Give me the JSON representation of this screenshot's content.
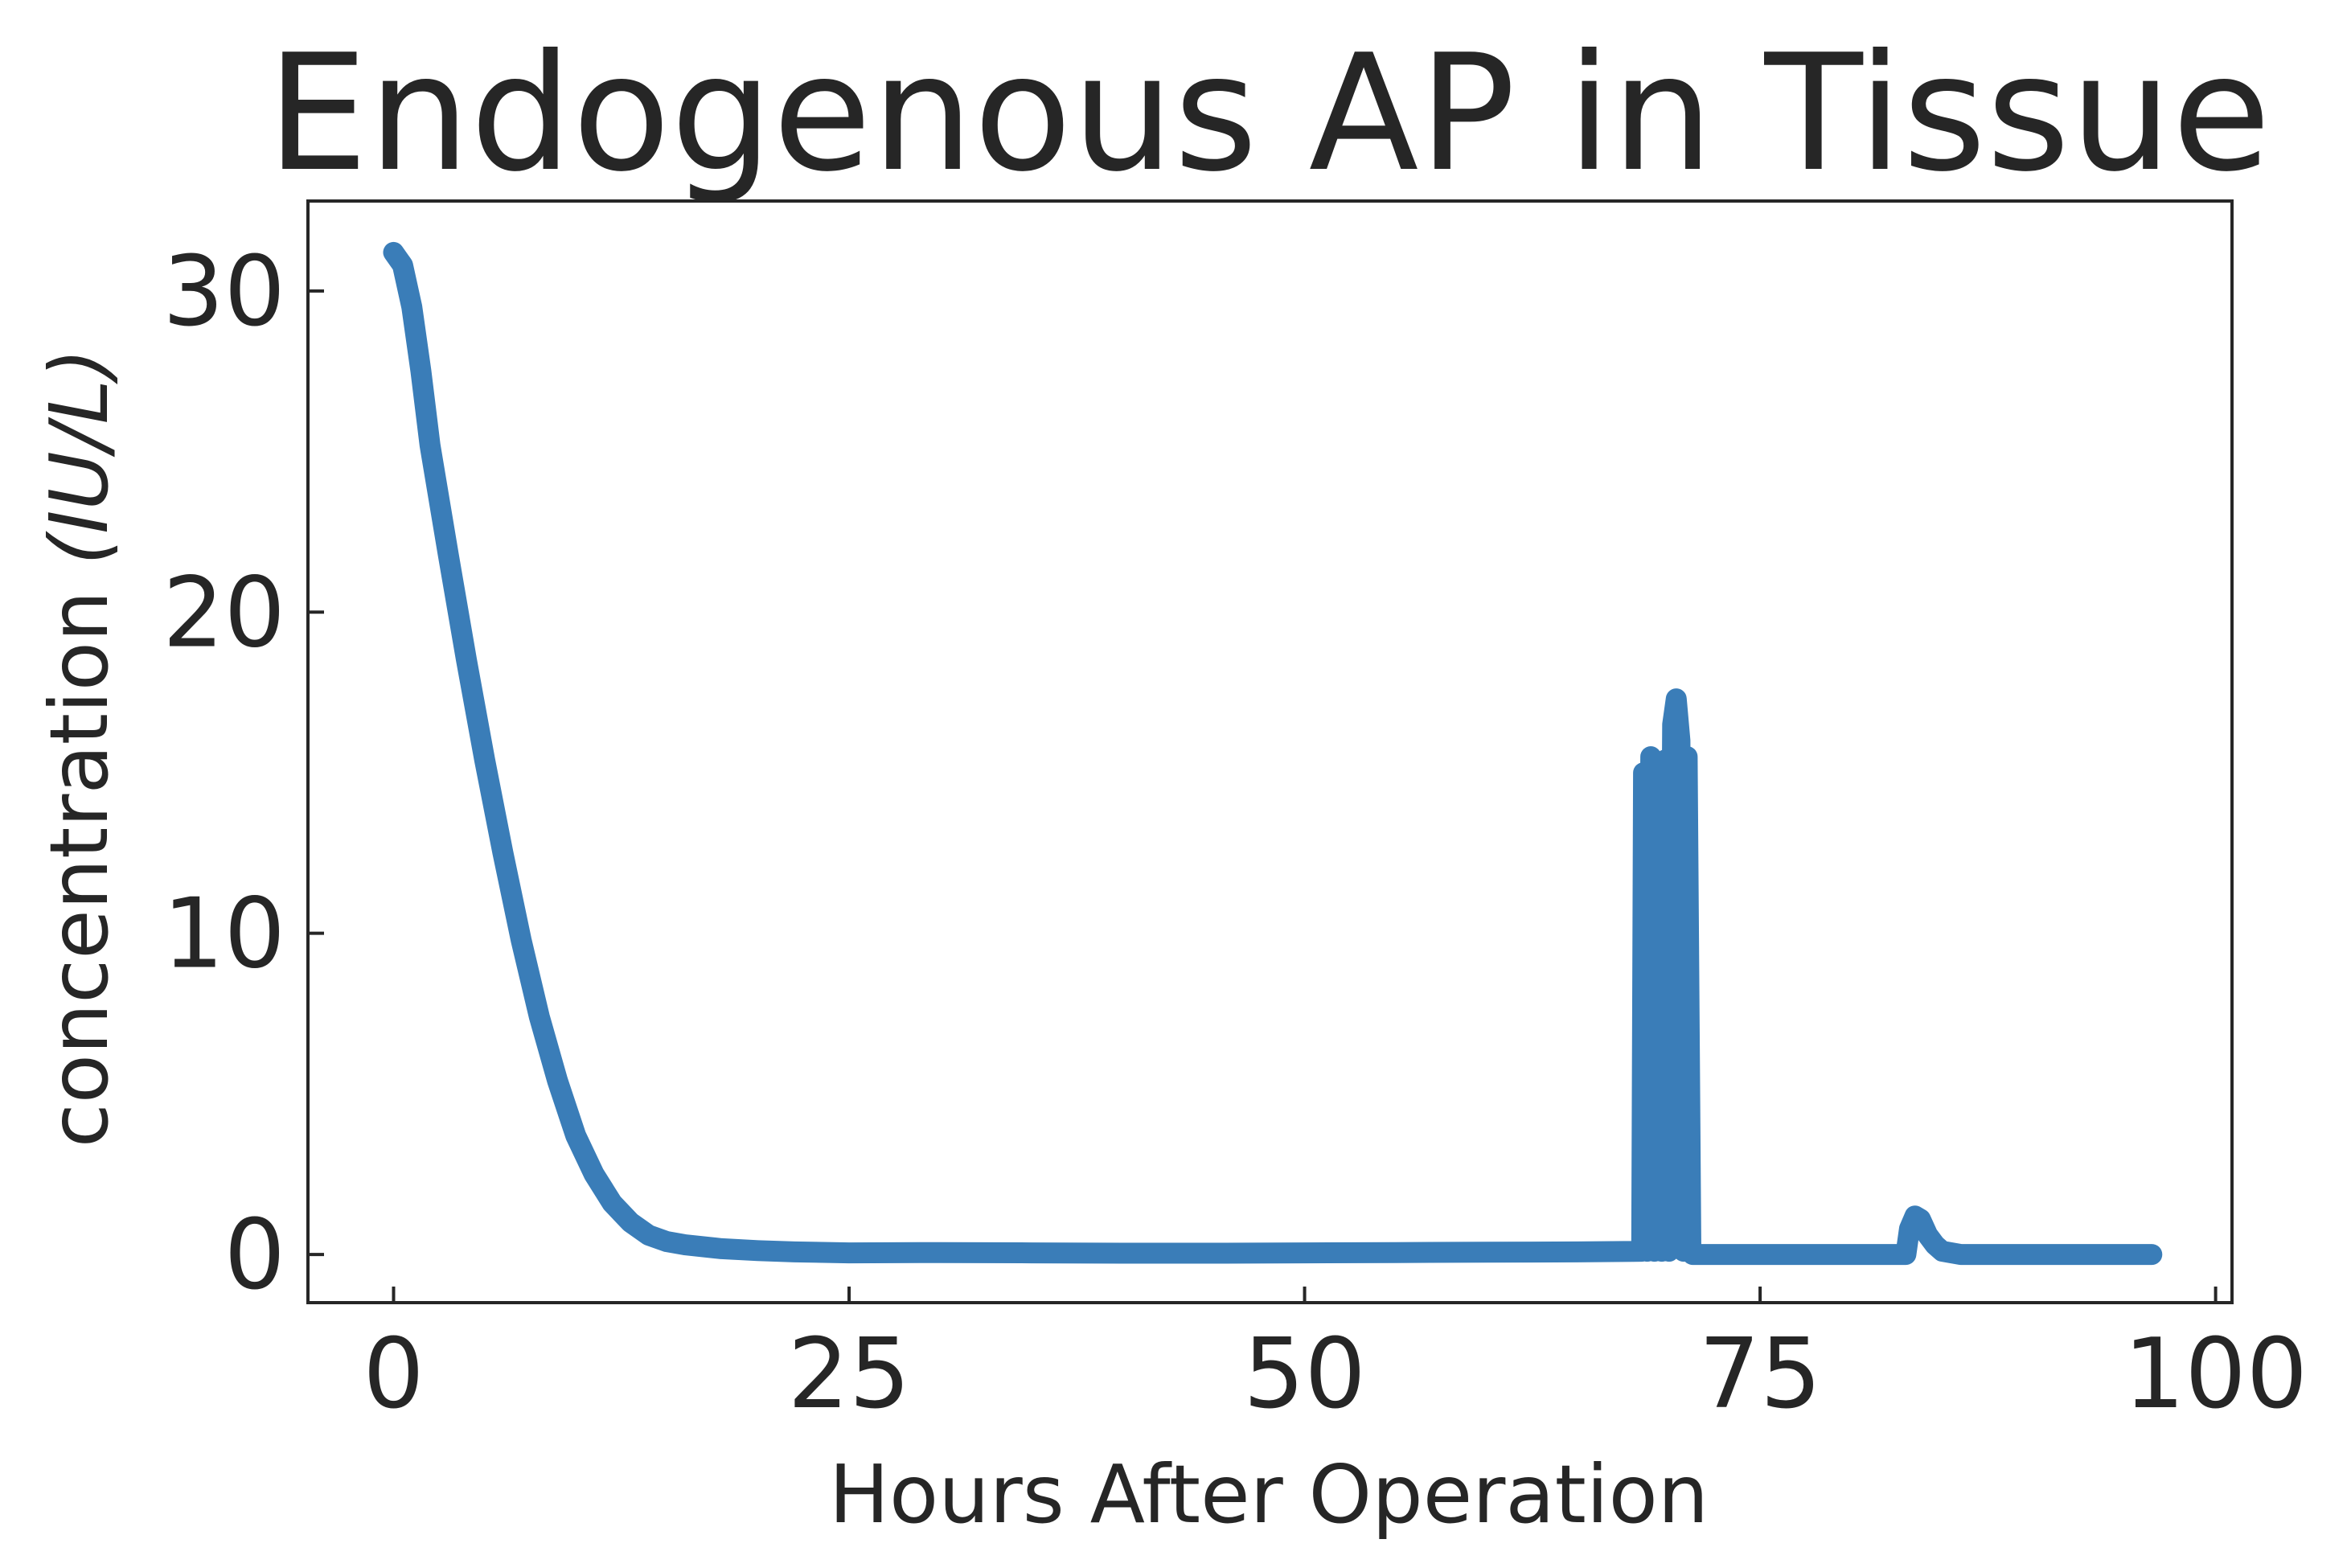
{
  "chart_data": {
    "type": "line",
    "title": "Endogenous AP in Tissue",
    "xlabel": "Hours After Operation",
    "ylabel_text": "concentration ",
    "ylabel_unit": "(IU/L)",
    "xlim": [
      -4.7,
      100.9
    ],
    "ylim": [
      -1.5,
      32.8
    ],
    "xticks": [
      0,
      25,
      50,
      75,
      100
    ],
    "yticks": [
      0,
      10,
      20,
      30
    ],
    "grid": false,
    "line_color": "#3a7db8",
    "series": [
      {
        "x": [
          0,
          0.5,
          1,
          1.5,
          2,
          3,
          4,
          5,
          6,
          7,
          8,
          9,
          10,
          11,
          12,
          13,
          14,
          15,
          16,
          18,
          20,
          22,
          25,
          30,
          35,
          40,
          45,
          50,
          55,
          60,
          65,
          68.5,
          68.6,
          68.8,
          69.0,
          69.2,
          69.4,
          69.6,
          69.8,
          70.0,
          70.2,
          70.4,
          70.6,
          70.8,
          71.0,
          71.2,
          71.3,
          72,
          80,
          82,
          83.0,
          83.2,
          83.5,
          83.8,
          84.2,
          84.6,
          85,
          85.5,
          86,
          87,
          90,
          96.5
        ],
        "y": [
          31.2,
          30.8,
          29.5,
          27.5,
          25.2,
          21.8,
          18.5,
          15.4,
          12.5,
          9.8,
          7.4,
          5.4,
          3.7,
          2.5,
          1.6,
          1.0,
          0.6,
          0.4,
          0.3,
          0.18,
          0.12,
          0.08,
          0.05,
          0.06,
          0.05,
          0.04,
          0.04,
          0.05,
          0.06,
          0.07,
          0.08,
          0.1,
          15.0,
          0.1,
          15.5,
          0.1,
          15.2,
          0.1,
          15.4,
          0.1,
          16.5,
          17.3,
          16.0,
          0.1,
          15.5,
          0.1,
          0.0,
          0.0,
          0.0,
          0.0,
          0.0,
          0.8,
          1.2,
          1.1,
          0.6,
          0.3,
          0.1,
          0.05,
          0.0,
          0.0,
          0.0,
          0.0
        ]
      }
    ]
  }
}
